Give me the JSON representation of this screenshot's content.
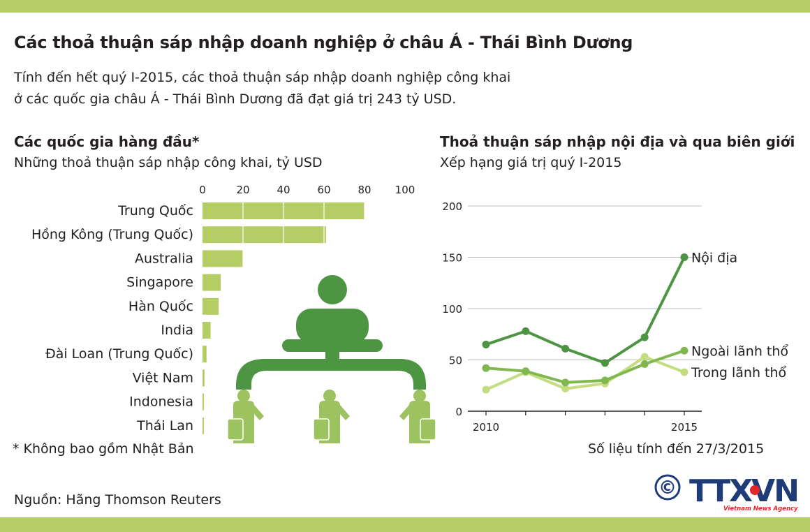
{
  "header": {
    "title": "Các thoả thuận sáp nhập doanh nghiệp ở châu Á - Thái Bình Dương",
    "subtitle_line1": "Tính đến hết quý I-2015, các thoả thuận sáp nhập doanh nghiệp công khai",
    "subtitle_line2": "ở các quốc gia châu Á - Thái Bình Dương đã đạt giá trị 243 tỷ USD."
  },
  "colors": {
    "band": "#b4cd64",
    "bar": "#b4cd64",
    "domestic": "#4e9543",
    "outbound": "#80b84f",
    "inbound": "#c4dd82",
    "grid": "#bcbec0",
    "text": "#231f20",
    "figure": "#4e9543",
    "figure_light": "#9cc35f",
    "logo": "#1f3c78",
    "logo_accent": "#e0262a"
  },
  "chart_data": [
    {
      "type": "bar",
      "orientation": "horizontal",
      "title": "Các quốc gia hàng đầu*",
      "subtitle": "Những thoả thuận sáp nhập công khai, tỷ USD",
      "categories": [
        "Trung Quốc",
        "Hồng Kông (Trung Quốc)",
        "Australia",
        "Singapore",
        "Hàn Quốc",
        "India",
        "Đài Loan (Trung Quốc)",
        "Việt Nam",
        "Indonesia",
        "Thái Lan"
      ],
      "values": [
        80,
        61,
        20,
        9,
        8,
        4,
        2,
        1,
        0.7,
        0.5
      ],
      "ticks": [
        0,
        20,
        40,
        60,
        80,
        100
      ],
      "xlim": [
        0,
        100
      ],
      "grid": true,
      "footnote": "* Không bao gồm Nhật Bản"
    },
    {
      "type": "line",
      "title": "Thoả thuận sáp nhập nội địa và qua biên giới",
      "subtitle": "Xếp hạng giá trị quý I-2015",
      "x": [
        2010,
        2011,
        2012,
        2013,
        2014,
        2015
      ],
      "x_tick_labels": [
        "2010",
        "2015"
      ],
      "y_ticks": [
        0,
        50,
        100,
        150,
        200
      ],
      "ylim": [
        0,
        200
      ],
      "grid": true,
      "series": [
        {
          "name": "Nội địa",
          "values": [
            65,
            78,
            61,
            47,
            72,
            150
          ]
        },
        {
          "name": "Ngoài lãnh thổ",
          "values": [
            42,
            39,
            28,
            30,
            46,
            59
          ]
        },
        {
          "name": "Trong lãnh thổ",
          "values": [
            21,
            38,
            22,
            27,
            53,
            38
          ]
        }
      ],
      "note": "Số liệu tính đến 27/3/2015"
    }
  ],
  "footer": {
    "source": "Nguồn: Hãng Thomson Reuters",
    "copyright_symbol": "©",
    "logo_text": "TTXVN",
    "logo_tagline": "Vietnam News Agency"
  }
}
